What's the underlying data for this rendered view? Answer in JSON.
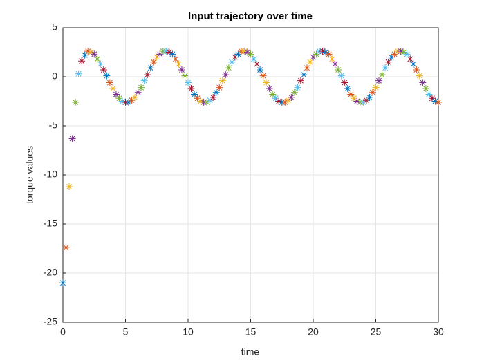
{
  "chart_data": {
    "type": "scatter",
    "title": "Input trajectory over time",
    "x_label": "time",
    "y_label": "torque values",
    "x": [
      0,
      0.25,
      0.5,
      0.75,
      1,
      1.25,
      1.5,
      1.75,
      2,
      2.25,
      2.5,
      2.75,
      3,
      3.25,
      3.5,
      3.75,
      4,
      4.25,
      4.5,
      4.75,
      5,
      5.25,
      5.5,
      5.75,
      6,
      6.25,
      6.5,
      6.75,
      7,
      7.25,
      7.5,
      7.75,
      8,
      8.25,
      8.5,
      8.75,
      9,
      9.25,
      9.5,
      9.75,
      10,
      10.25,
      10.5,
      10.75,
      11,
      11.25,
      11.5,
      11.75,
      12,
      12.25,
      12.5,
      12.75,
      13,
      13.25,
      13.5,
      13.75,
      14,
      14.25,
      14.5,
      14.75,
      15,
      15.25,
      15.5,
      15.75,
      16,
      16.25,
      16.5,
      16.75,
      17,
      17.25,
      17.5,
      17.75,
      18,
      18.25,
      18.5,
      18.75,
      19,
      19.25,
      19.5,
      19.75,
      20,
      20.25,
      20.5,
      20.75,
      21,
      21.25,
      21.5,
      21.75,
      22,
      22.25,
      22.5,
      22.75,
      23,
      23.25,
      23.5,
      23.75,
      24,
      24.25,
      24.5,
      24.75,
      25,
      25.25,
      25.5,
      25.75,
      26,
      26.25,
      26.5,
      26.75,
      27,
      27.25,
      27.5,
      27.75,
      28,
      28.25,
      28.5,
      28.75,
      29,
      29.25,
      29.5,
      29.75,
      30
    ],
    "values": [
      -21,
      -17.4,
      -11.2,
      -6.3,
      -2.6,
      0.3,
      1.6,
      2.2,
      2.6,
      2.5,
      2.3,
      1.8,
      1.3,
      0.7,
      0.1,
      -0.6,
      -1.2,
      -1.8,
      -2.2,
      -2.5,
      -2.6,
      -2.6,
      -2.4,
      -2.1,
      -1.6,
      -1.1,
      -0.4,
      0.2,
      0.9,
      1.5,
      2.0,
      2.3,
      2.6,
      2.6,
      2.5,
      2.3,
      1.8,
      1.3,
      0.7,
      0.1,
      -0.6,
      -1.2,
      -1.8,
      -2.2,
      -2.5,
      -2.6,
      -2.6,
      -2.4,
      -2.1,
      -1.6,
      -1.1,
      -0.4,
      0.2,
      0.9,
      1.5,
      2.0,
      2.3,
      2.6,
      2.6,
      2.5,
      2.3,
      1.8,
      1.3,
      0.7,
      0.1,
      -0.6,
      -1.2,
      -1.8,
      -2.2,
      -2.5,
      -2.6,
      -2.6,
      -2.4,
      -2.1,
      -1.6,
      -1.1,
      -0.4,
      0.2,
      0.9,
      1.5,
      2.0,
      2.3,
      2.6,
      2.6,
      2.5,
      2.3,
      1.8,
      1.3,
      0.7,
      0.1,
      -0.6,
      -1.2,
      -1.8,
      -2.2,
      -2.5,
      -2.6,
      -2.6,
      -2.4,
      -2.1,
      -1.6,
      -1.1,
      -0.4,
      0.2,
      0.9,
      1.5,
      2.0,
      2.3,
      2.6,
      2.6,
      2.5,
      2.3,
      1.8,
      1.3,
      0.7,
      0.1,
      -0.6,
      -1.2,
      -1.8,
      -2.2,
      -2.5,
      -2.6
    ],
    "colors": [
      "#0072bd",
      "#d95319",
      "#edb120",
      "#7e2f8e",
      "#77ac30",
      "#4dbeee",
      "#a2142f"
    ],
    "xlim": [
      0,
      30
    ],
    "xticks": [
      0,
      5,
      10,
      15,
      20,
      25,
      30
    ],
    "ylim": [
      -25,
      5
    ],
    "yticks": [
      -25,
      -20,
      -15,
      -10,
      -5,
      0,
      5
    ],
    "grid": true
  }
}
